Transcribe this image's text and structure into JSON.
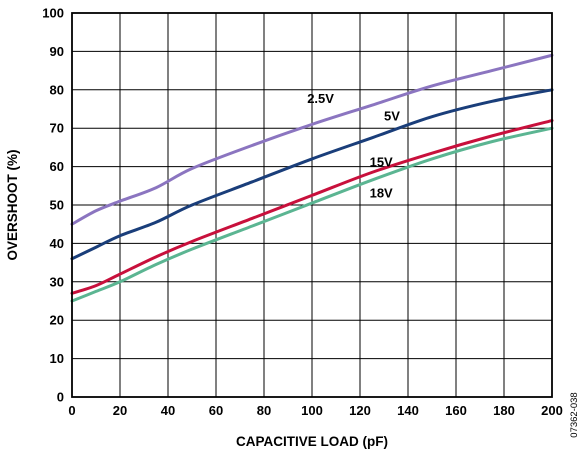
{
  "chart_data": {
    "type": "line",
    "xlabel": "CAPACITIVE LOAD (pF)",
    "ylabel": "OVERSHOOT (%)",
    "xlim": [
      0,
      200
    ],
    "ylim": [
      0,
      100
    ],
    "x_ticks": [
      0,
      20,
      40,
      60,
      80,
      100,
      120,
      140,
      160,
      180,
      200
    ],
    "y_ticks": [
      0,
      10,
      20,
      30,
      40,
      50,
      60,
      70,
      80,
      90,
      100
    ],
    "grid": true,
    "x": [
      0,
      10,
      20,
      35,
      50,
      75,
      100,
      125,
      150,
      175,
      200
    ],
    "series": [
      {
        "name": "2.5V",
        "color": "#8b75c0",
        "values": [
          45,
          48.5,
          51,
          54.5,
          59.5,
          65.5,
          71,
          76,
          81,
          85,
          89
        ]
      },
      {
        "name": "5V",
        "color": "#1a3e7a",
        "values": [
          36,
          39,
          42,
          45.5,
          50,
          56,
          62,
          67.5,
          73,
          77,
          80
        ]
      },
      {
        "name": "15V",
        "color": "#c8103c",
        "values": [
          27,
          29,
          32,
          36.5,
          40.5,
          46.5,
          52.5,
          58.5,
          63.5,
          68,
          72
        ]
      },
      {
        "name": "18V",
        "color": "#5bb592",
        "values": [
          25,
          27.5,
          30,
          34.5,
          38.5,
          44.5,
          50.5,
          56.5,
          62,
          66.5,
          70
        ]
      }
    ]
  },
  "figure_id": "07362-038"
}
